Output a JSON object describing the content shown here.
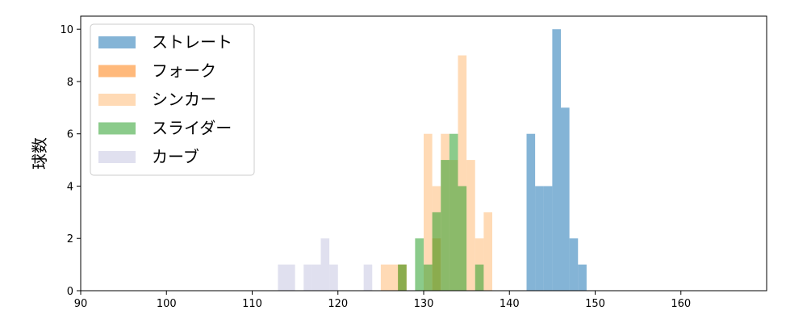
{
  "chart_data": {
    "type": "histogram",
    "ylabel": "球数",
    "xlim": [
      90,
      170
    ],
    "ylim": [
      0,
      10.5
    ],
    "x_ticks": [
      "90",
      "100",
      "110",
      "120",
      "130",
      "140",
      "150",
      "160"
    ],
    "y_ticks": [
      "0",
      "2",
      "4",
      "6",
      "8",
      "10"
    ],
    "grid": false,
    "legend_position": "top-left",
    "series": [
      {
        "name": "ストレート",
        "color": "#1f77b4",
        "bin_width": 1,
        "bins": [
          [
            142,
            6
          ],
          [
            143,
            4
          ],
          [
            144,
            4
          ],
          [
            145,
            10
          ],
          [
            146,
            7
          ],
          [
            147,
            2
          ],
          [
            148,
            1
          ]
        ]
      },
      {
        "name": "フォーク",
        "color": "#ff7f0e",
        "bin_width": 1,
        "bins": [
          [
            127,
            1
          ],
          [
            131,
            2
          ]
        ]
      },
      {
        "name": "シンカー",
        "color": "#ffbb78",
        "bin_width": 1,
        "bins": [
          [
            125,
            1
          ],
          [
            126,
            1
          ],
          [
            127,
            1
          ],
          [
            130,
            6
          ],
          [
            131,
            4
          ],
          [
            132,
            6
          ],
          [
            133,
            5
          ],
          [
            134,
            9
          ],
          [
            135,
            5
          ],
          [
            136,
            2
          ],
          [
            137,
            3
          ]
        ]
      },
      {
        "name": "スライダー",
        "color": "#2ca02c",
        "bin_width": 1,
        "bins": [
          [
            127,
            1
          ],
          [
            129,
            2
          ],
          [
            130,
            1
          ],
          [
            131,
            3
          ],
          [
            132,
            5
          ],
          [
            133,
            6
          ],
          [
            134,
            4
          ],
          [
            136,
            1
          ]
        ]
      },
      {
        "name": "カーブ",
        "color": "#c7c7e2",
        "bin_width": 1,
        "bins": [
          [
            113,
            1
          ],
          [
            114,
            1
          ],
          [
            116,
            1
          ],
          [
            117,
            1
          ],
          [
            118,
            2
          ],
          [
            119,
            1
          ],
          [
            123,
            1
          ]
        ]
      }
    ]
  }
}
